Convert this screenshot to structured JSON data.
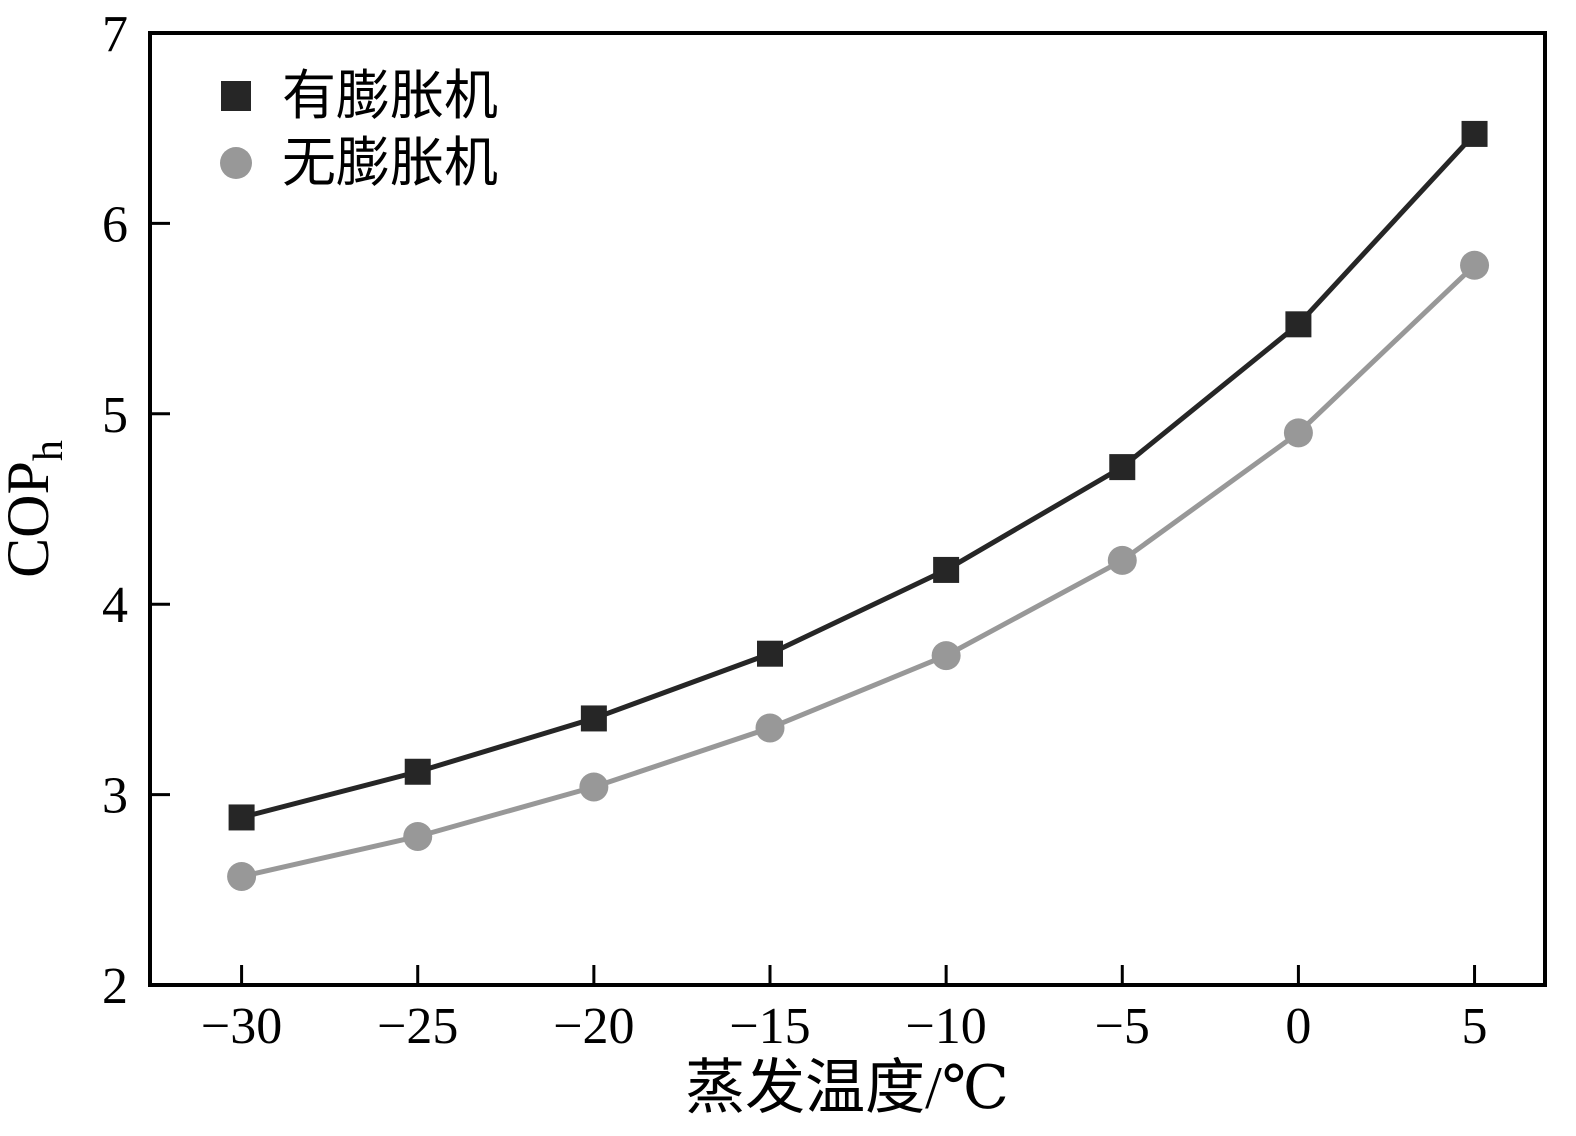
{
  "figure": {
    "background": "#ffffff",
    "axis_color": "#000000"
  },
  "chart_data": {
    "type": "line",
    "x": [
      -30,
      -25,
      -20,
      -15,
      -10,
      -5,
      0,
      5
    ],
    "series": [
      {
        "name": "有膨胀机",
        "marker": "square",
        "color": "#262626",
        "values": [
          2.88,
          3.12,
          3.4,
          3.74,
          4.18,
          4.72,
          5.47,
          6.47
        ]
      },
      {
        "name": "无膨胀机",
        "marker": "circle",
        "color": "#989898",
        "values": [
          2.57,
          2.78,
          3.04,
          3.35,
          3.73,
          4.23,
          4.9,
          5.78
        ]
      }
    ],
    "xlabel": "蒸发温度/℃",
    "ylabel_main": "COP",
    "ylabel_sub": "h",
    "xlim": [
      -32.6,
      7.0
    ],
    "ylim": [
      2,
      7
    ],
    "xticks": [
      -30,
      -25,
      -20,
      -15,
      -10,
      -5,
      0,
      5
    ],
    "yticks": [
      2,
      3,
      4,
      5,
      6,
      7
    ],
    "grid": false,
    "legend_position": "top-left"
  }
}
